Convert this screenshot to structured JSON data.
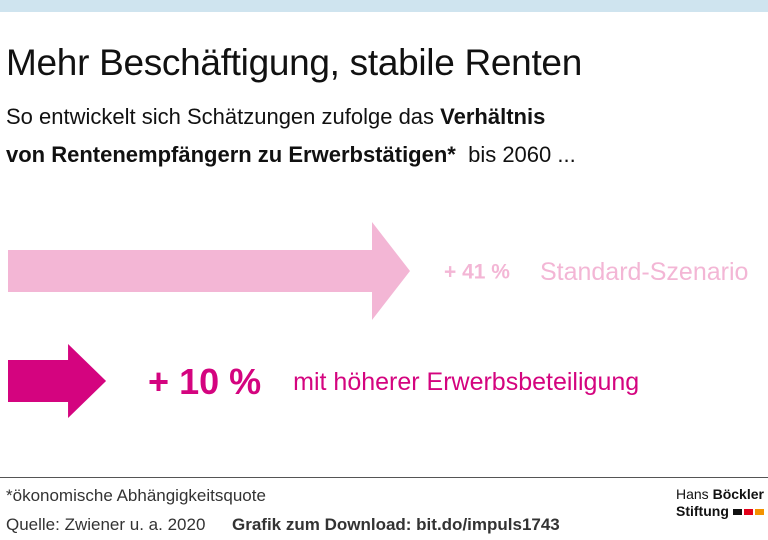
{
  "header": {
    "title": "Mehr Beschäftigung, stabile Renten",
    "subtitle_pre": "So entwickelt sich Schätzungen zufolge das ",
    "subtitle_bold_1": "Verhältnis",
    "subtitle_bold_2": "von Rentenempfängern zu Erwerbstätigen*",
    "subtitle_post": "  bis 2060 ..."
  },
  "colors": {
    "top_band": "#cfe4ef",
    "standard": "#f3b6d5",
    "higher": "#d4047f"
  },
  "chart_data": {
    "type": "bar",
    "categories": [
      "Standard-Szenario",
      "mit höherer Erwerbsbeteiligung"
    ],
    "values": [
      41,
      10
    ],
    "value_labels": [
      "+ 41 %",
      "+ 10 %"
    ],
    "unit": "%",
    "title": "Mehr Beschäftigung, stabile Renten",
    "xlabel": "",
    "ylabel": "",
    "grid": false
  },
  "footer": {
    "footnote": "*ökonomische Abhängigkeitsquote",
    "source": "Quelle: Zwiener u. a. 2020",
    "download": "Grafik zum Download: bit.do/impuls1743"
  },
  "logo": {
    "line1_a": "Hans",
    "line1_b": "Böckler",
    "line2": "Stiftung",
    "bar_colors": [
      "#111111",
      "#e2001a",
      "#f39200"
    ]
  }
}
